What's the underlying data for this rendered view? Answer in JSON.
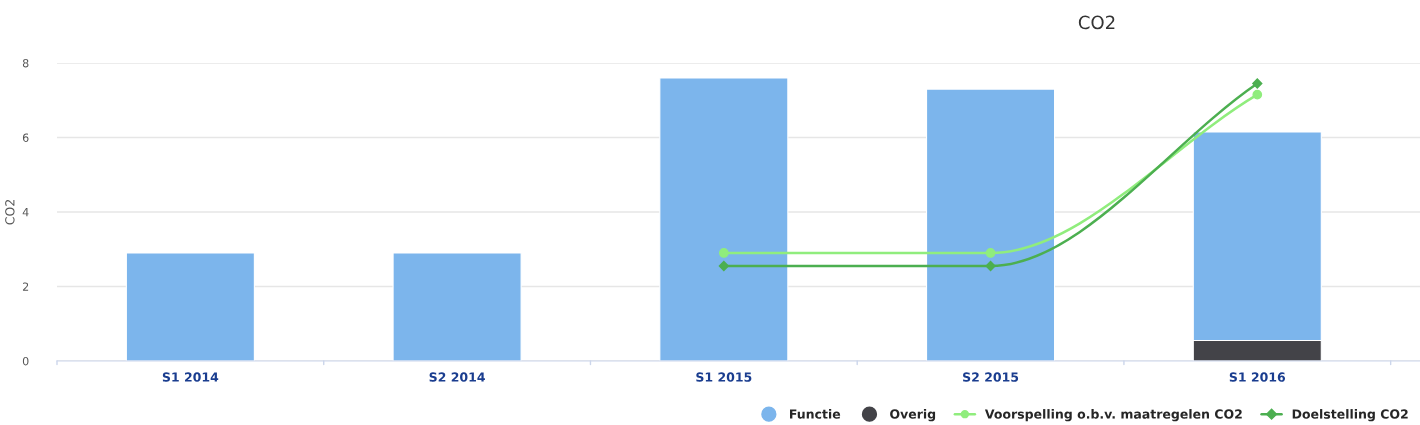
{
  "chart_data": {
    "type": "bar",
    "title": "CO2",
    "ylabel": "CO2",
    "categories": [
      "S1 2014",
      "S2 2014",
      "S1 2015",
      "S2 2015",
      "S1 2016"
    ],
    "stacked": true,
    "ylim": [
      0,
      8
    ],
    "yticks": [
      0,
      2,
      4,
      6,
      8
    ],
    "grid": "y",
    "legend": "bottom right",
    "series": [
      {
        "name": "Overig",
        "color": "#434348",
        "values": [
          null,
          null,
          null,
          null,
          0.55
        ]
      },
      {
        "name": "Functie",
        "color": "#7cb5ec",
        "values": [
          2.9,
          2.9,
          7.6,
          7.3,
          5.6
        ]
      },
      {
        "name": "Voorspelling o.b.v. maatregelen CO2",
        "type": "line",
        "color": "#90ed7d",
        "marker": "circle",
        "values": [
          null,
          null,
          2.9,
          2.9,
          7.15
        ]
      },
      {
        "name": "Doelstelling CO2",
        "type": "line",
        "color": "#4caf50",
        "marker": "diamond",
        "values": [
          null,
          null,
          2.55,
          2.55,
          7.45
        ]
      }
    ]
  }
}
